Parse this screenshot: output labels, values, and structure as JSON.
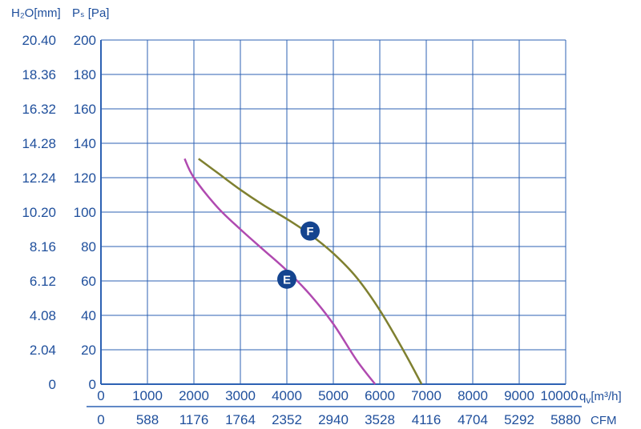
{
  "chart_data": {
    "type": "line",
    "left_axis": {
      "unit_label": "H₂O[mm]",
      "ticks": [
        "20.40",
        "18.36",
        "16.32",
        "14.28",
        "12.24",
        "10.20",
        "8.16",
        "6.12",
        "4.08",
        "2.04",
        "0"
      ]
    },
    "y_axis": {
      "unit_label": "Pₛ [Pa]",
      "ticks": [
        200,
        180,
        160,
        140,
        120,
        100,
        80,
        60,
        40,
        20,
        0
      ],
      "range": [
        0,
        200
      ]
    },
    "x_axis": {
      "unit_label": "q",
      "unit_sub": "v",
      "unit_rest": "[m³/h]",
      "ticks": [
        0,
        1000,
        2000,
        3000,
        4000,
        5000,
        6000,
        7000,
        8000,
        9000,
        10000
      ],
      "range": [
        0,
        10000
      ]
    },
    "x_axis_cfm": {
      "unit_label": "CFM",
      "ticks": [
        "0",
        "588",
        "1176",
        "1764",
        "2352",
        "2940",
        "3528",
        "4116",
        "4704",
        "5292",
        "5880"
      ]
    },
    "grid": true,
    "series": [
      {
        "name": "F",
        "color": "#7f8030",
        "x": [
          2100,
          2500,
          3000,
          3500,
          4000,
          4500,
          5000,
          5500,
          6000,
          6500,
          6900
        ],
        "y": [
          131,
          123,
          113,
          104,
          96,
          87,
          76,
          62,
          43,
          20,
          0
        ],
        "label_x": 4500,
        "label_y": 89
      },
      {
        "name": "E",
        "color": "#b04ab0",
        "x": [
          1800,
          2000,
          2500,
          3000,
          3500,
          4000,
          4500,
          5000,
          5500,
          5900
        ],
        "y": [
          131,
          120,
          103,
          90,
          78,
          66,
          52,
          35,
          14,
          0
        ],
        "label_x": 4000,
        "label_y": 61
      }
    ]
  }
}
